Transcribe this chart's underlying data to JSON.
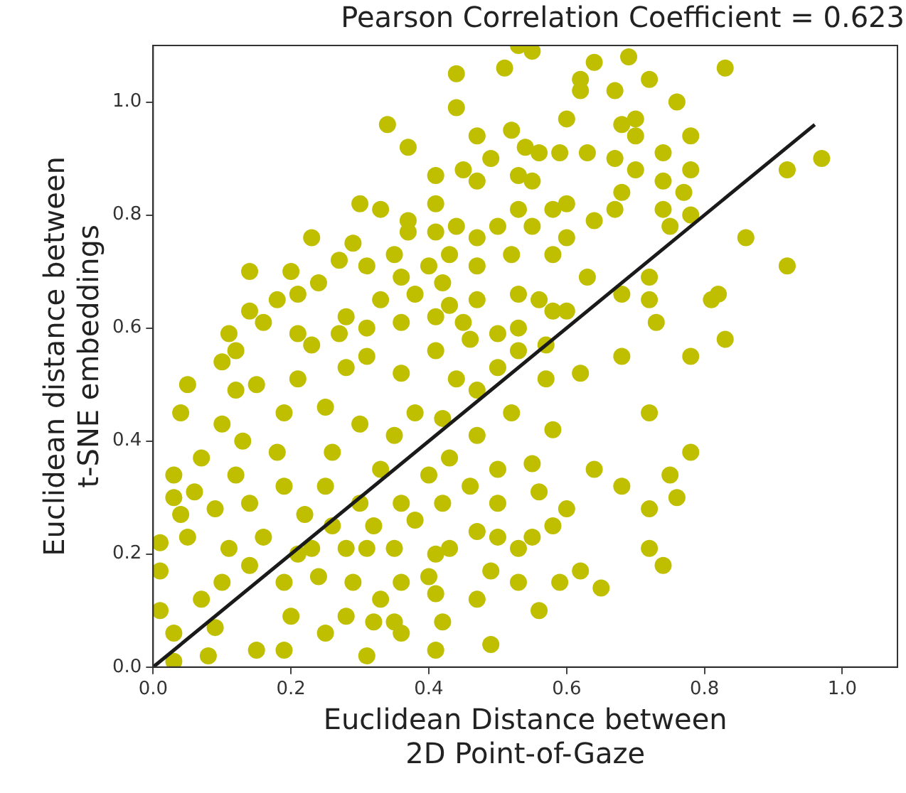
{
  "chart_data": {
    "type": "scatter",
    "title": "Pearson Correlation Coefficient = 0.623",
    "xlabel": "Euclidean Distance between\n2D Point-of-Gaze",
    "ylabel": "Euclidean distance between\nt-SNE embeddings",
    "xlim": [
      0,
      1.08
    ],
    "ylim": [
      0,
      1.1
    ],
    "xticks": [
      {
        "value": 0,
        "label": "0.0"
      },
      0.2,
      0.4,
      0.6,
      0.8,
      {
        "value": 1,
        "label": "1.0"
      }
    ],
    "yticks": [
      {
        "value": 0,
        "label": "0.0"
      },
      0.2,
      0.4,
      0.6,
      0.8,
      {
        "value": 1,
        "label": "1.0"
      }
    ],
    "grid": false,
    "legend": false,
    "series": [
      {
        "color": "#bfbf00",
        "marker": "circle",
        "x": [
          0.83,
          0.78,
          0.78,
          0.75,
          0.76,
          0.72,
          0.72,
          0.74,
          0.68,
          0.72,
          0.68,
          0.64,
          0.65,
          0.62,
          0.59,
          0.56,
          0.49,
          0.41,
          0.31,
          0.08,
          0.03,
          0.6,
          0.58,
          0.58,
          0.62,
          0.97,
          0.92,
          0.83,
          0.86,
          0.92,
          0.82,
          0.81,
          0.76,
          0.78,
          0.78,
          0.77,
          0.78,
          0.72,
          0.72,
          0.73,
          0.68,
          0.63,
          0.69,
          0.64,
          0.72,
          0.62,
          0.67,
          0.55,
          0.53,
          0.51,
          0.44,
          0.44,
          0.34,
          0.37,
          0.3,
          0.33,
          0.23,
          0.29,
          0.27,
          0.14,
          0.2,
          0.18,
          0.14,
          0.16,
          0.11,
          0.21,
          0.24,
          0.6,
          0.62,
          0.47,
          0.52,
          0.54,
          0.56,
          0.59,
          0.63,
          0.68,
          0.7,
          0.7,
          0.67,
          0.74,
          0.74,
          0.74,
          0.75,
          0.7,
          0.68,
          0.67,
          0.64,
          0.6,
          0.58,
          0.55,
          0.53,
          0.49,
          0.45,
          0.47,
          0.41,
          0.41,
          0.37,
          0.37,
          0.41,
          0.44,
          0.47,
          0.5,
          0.53,
          0.55,
          0.58,
          0.6,
          0.52,
          0.47,
          0.43,
          0.4,
          0.35,
          0.31,
          0.36,
          0.42,
          0.47,
          0.53,
          0.56,
          0.58,
          0.53,
          0.45,
          0.41,
          0.36,
          0.31,
          0.28,
          0.27,
          0.33,
          0.38,
          0.43,
          0.5,
          0.46,
          0.57,
          0.6,
          0.05,
          0.04,
          0.03,
          0.03,
          0.04,
          0.01,
          0.01,
          0.01,
          0.07,
          0.03,
          0.1,
          0.12,
          0.15,
          0.1,
          0.07,
          0.06,
          0.09,
          0.05,
          0.11,
          0.14,
          0.1,
          0.09,
          0.15,
          0.19,
          0.2,
          0.25,
          0.28,
          0.32,
          0.35,
          0.36,
          0.33,
          0.29,
          0.24,
          0.21,
          0.19,
          0.16,
          0.14,
          0.19,
          0.18,
          0.13,
          0.19,
          0.25,
          0.21,
          0.23,
          0.28,
          0.31,
          0.36,
          0.41,
          0.44,
          0.47,
          0.5,
          0.53,
          0.57,
          0.52,
          0.47,
          0.43,
          0.4,
          0.36,
          0.32,
          0.28,
          0.26,
          0.25,
          0.26,
          0.3,
          0.35,
          0.38,
          0.42,
          0.33,
          0.3,
          0.38,
          0.42,
          0.46,
          0.5,
          0.55,
          0.56,
          0.5,
          0.47,
          0.43,
          0.41,
          0.4,
          0.41,
          0.42,
          0.47,
          0.49,
          0.53,
          0.53,
          0.55,
          0.5,
          0.35,
          0.36,
          0.31,
          0.23,
          0.22,
          0.12,
          0.12,
          0.21
        ],
        "values": [
          0.58,
          0.55,
          0.38,
          0.34,
          0.3,
          0.28,
          0.21,
          0.18,
          0.55,
          0.45,
          0.32,
          0.35,
          0.14,
          0.17,
          0.15,
          0.1,
          0.04,
          0.03,
          0.02,
          0.02,
          0.01,
          0.28,
          0.25,
          0.42,
          0.52,
          0.9,
          0.88,
          1.06,
          0.76,
          0.71,
          0.66,
          0.65,
          1.0,
          0.94,
          0.88,
          0.84,
          0.8,
          0.69,
          0.65,
          0.61,
          0.66,
          0.69,
          1.08,
          1.07,
          1.04,
          1.04,
          1.02,
          1.09,
          1.1,
          1.06,
          1.05,
          0.99,
          0.96,
          0.92,
          0.82,
          0.81,
          0.76,
          0.75,
          0.72,
          0.7,
          0.7,
          0.65,
          0.63,
          0.61,
          0.59,
          0.66,
          0.68,
          0.97,
          1.02,
          0.94,
          0.95,
          0.92,
          0.91,
          0.91,
          0.91,
          0.96,
          0.97,
          0.94,
          0.9,
          0.91,
          0.86,
          0.81,
          0.78,
          0.88,
          0.84,
          0.81,
          0.79,
          0.82,
          0.81,
          0.86,
          0.87,
          0.9,
          0.88,
          0.86,
          0.87,
          0.82,
          0.79,
          0.77,
          0.77,
          0.78,
          0.76,
          0.78,
          0.81,
          0.78,
          0.73,
          0.76,
          0.73,
          0.71,
          0.73,
          0.71,
          0.73,
          0.71,
          0.69,
          0.68,
          0.65,
          0.66,
          0.65,
          0.63,
          0.6,
          0.61,
          0.62,
          0.61,
          0.6,
          0.62,
          0.59,
          0.65,
          0.66,
          0.64,
          0.59,
          0.58,
          0.57,
          0.63,
          0.5,
          0.45,
          0.34,
          0.3,
          0.27,
          0.22,
          0.17,
          0.1,
          0.12,
          0.06,
          0.54,
          0.49,
          0.5,
          0.43,
          0.37,
          0.31,
          0.28,
          0.23,
          0.21,
          0.18,
          0.15,
          0.07,
          0.03,
          0.03,
          0.09,
          0.06,
          0.09,
          0.08,
          0.08,
          0.06,
          0.12,
          0.15,
          0.16,
          0.2,
          0.15,
          0.23,
          0.29,
          0.32,
          0.38,
          0.4,
          0.45,
          0.46,
          0.51,
          0.57,
          0.53,
          0.55,
          0.52,
          0.56,
          0.51,
          0.49,
          0.53,
          0.56,
          0.51,
          0.45,
          0.41,
          0.37,
          0.34,
          0.29,
          0.25,
          0.21,
          0.25,
          0.32,
          0.38,
          0.43,
          0.41,
          0.45,
          0.44,
          0.35,
          0.29,
          0.26,
          0.29,
          0.32,
          0.35,
          0.36,
          0.31,
          0.29,
          0.24,
          0.21,
          0.2,
          0.16,
          0.13,
          0.08,
          0.12,
          0.17,
          0.15,
          0.21,
          0.23,
          0.23,
          0.21,
          0.15,
          0.21,
          0.21,
          0.27,
          0.34,
          0.56,
          0.59
        ]
      },
      {
        "type": "line",
        "marker": "none",
        "color": "#1a1a1a",
        "x": [
          0,
          0.96
        ],
        "values": [
          0,
          0.96
        ]
      }
    ]
  }
}
